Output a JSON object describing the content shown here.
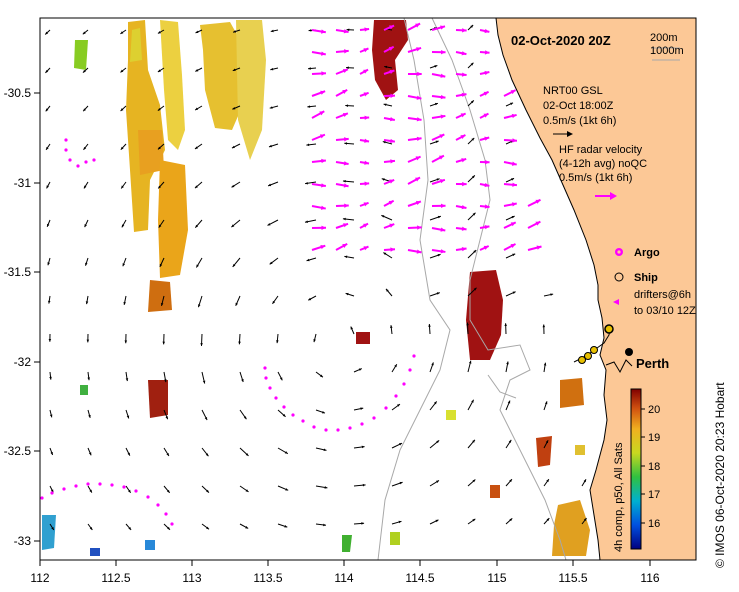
{
  "map": {
    "title_date": "02-Oct-2020 20Z",
    "bathymetry_legend": [
      "200m",
      "1000m"
    ],
    "model_legend": [
      "NRT00 GSL",
      "02-Oct 18:00Z",
      "0.5m/s (1kt 6h)"
    ],
    "radar_legend": [
      "HF radar velocity",
      "(4-12h avg) noQC",
      "0.5m/s (1kt 6h)"
    ],
    "argo_label": "Argo",
    "ship_label": "Ship",
    "drifter_legend": [
      "drifters@6h",
      "to 03/10 12Z"
    ],
    "city_label": "Perth",
    "credit": "© IMOS 06-Oct-2020 20:23 Hobart",
    "colorbar": {
      "label": "4h comp, p50, All Sats",
      "ticks": [
        "20",
        "19",
        "18",
        "17",
        "16"
      ]
    },
    "x_ticks": [
      "112",
      "112.5",
      "113",
      "113.5",
      "114",
      "114.5",
      "115",
      "115.5",
      "116"
    ],
    "y_ticks": [
      "-30.5",
      "-31",
      "-31.5",
      "-32",
      "-32.5",
      "-33"
    ],
    "colors": {
      "land": "#fcc896",
      "radar_vectors": "#ff00ff",
      "model_vectors": "#000000",
      "isobaths": "#a8a8a8",
      "sst_hot": "#a30f0f",
      "sst_cold": "#000080"
    }
  }
}
